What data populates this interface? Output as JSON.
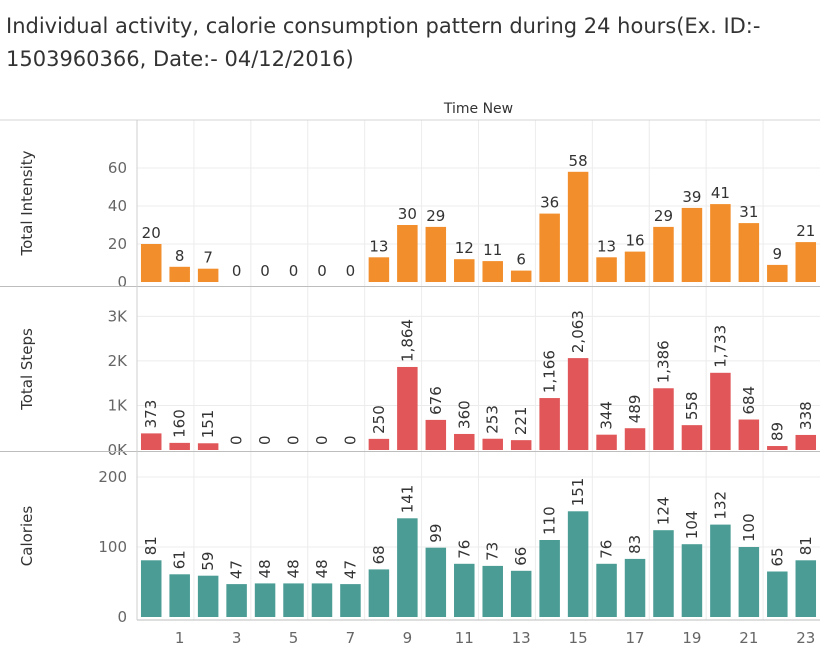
{
  "title": "Individual activity, calorie consumption pattern during 24 hours(Ex. ID:- 1503960366, Date:- 04/12/2016)",
  "chart_data": {
    "type": "bar",
    "column_header": "Time New",
    "x": [
      0,
      1,
      2,
      3,
      4,
      5,
      6,
      7,
      8,
      9,
      10,
      11,
      12,
      13,
      14,
      15,
      16,
      17,
      18,
      19,
      20,
      21,
      22,
      23
    ],
    "x_tick_labels": [
      "1",
      "3",
      "5",
      "7",
      "9",
      "11",
      "13",
      "15",
      "17",
      "19",
      "21",
      "23"
    ],
    "panels": [
      {
        "name": "Total Intensity",
        "color": "#f28e2b",
        "ylim": [
          0,
          70
        ],
        "y_tick_labels": [
          "0",
          "20",
          "40",
          "60"
        ],
        "values": [
          20,
          8,
          7,
          0,
          0,
          0,
          0,
          0,
          13,
          30,
          29,
          12,
          11,
          6,
          36,
          58,
          13,
          16,
          29,
          39,
          41,
          31,
          9,
          21
        ],
        "data_labels": [
          "20",
          "8",
          "7",
          "0",
          "0",
          "0",
          "0",
          "0",
          "13",
          "30",
          "29",
          "12",
          "11",
          "6",
          "36",
          "58",
          "13",
          "16",
          "29",
          "39",
          "41",
          "31",
          "9",
          "21"
        ],
        "label_rotation": "horizontal"
      },
      {
        "name": "Total Steps",
        "color": "#e15759",
        "ylim": [
          0,
          3300
        ],
        "y_tick_labels": [
          "0K",
          "1K",
          "2K",
          "3K"
        ],
        "values": [
          373,
          160,
          151,
          0,
          0,
          0,
          0,
          0,
          250,
          1864,
          676,
          360,
          253,
          221,
          1166,
          2063,
          344,
          489,
          1386,
          558,
          1733,
          684,
          89,
          338
        ],
        "data_labels": [
          "373",
          "160",
          "151",
          "0",
          "0",
          "0",
          "0",
          "0",
          "250",
          "1,864",
          "676",
          "360",
          "253",
          "221",
          "1,166",
          "2,063",
          "344",
          "489",
          "1,386",
          "558",
          "1,733",
          "684",
          "89",
          "338"
        ],
        "label_rotation": "vertical"
      },
      {
        "name": "Calories",
        "color": "#4a9c95",
        "ylim": [
          0,
          210
        ],
        "y_tick_labels": [
          "0",
          "100",
          "200"
        ],
        "values": [
          81,
          61,
          59,
          47,
          48,
          48,
          48,
          47,
          68,
          141,
          99,
          76,
          73,
          66,
          110,
          151,
          76,
          83,
          124,
          104,
          132,
          100,
          65,
          81
        ],
        "data_labels": [
          "81",
          "61",
          "59",
          "47",
          "48",
          "48",
          "48",
          "47",
          "68",
          "141",
          "99",
          "76",
          "73",
          "66",
          "110",
          "151",
          "76",
          "83",
          "124",
          "104",
          "132",
          "100",
          "65",
          "81"
        ],
        "label_rotation": "vertical"
      }
    ],
    "grid": {
      "horizontal": true,
      "vertical": true
    }
  }
}
